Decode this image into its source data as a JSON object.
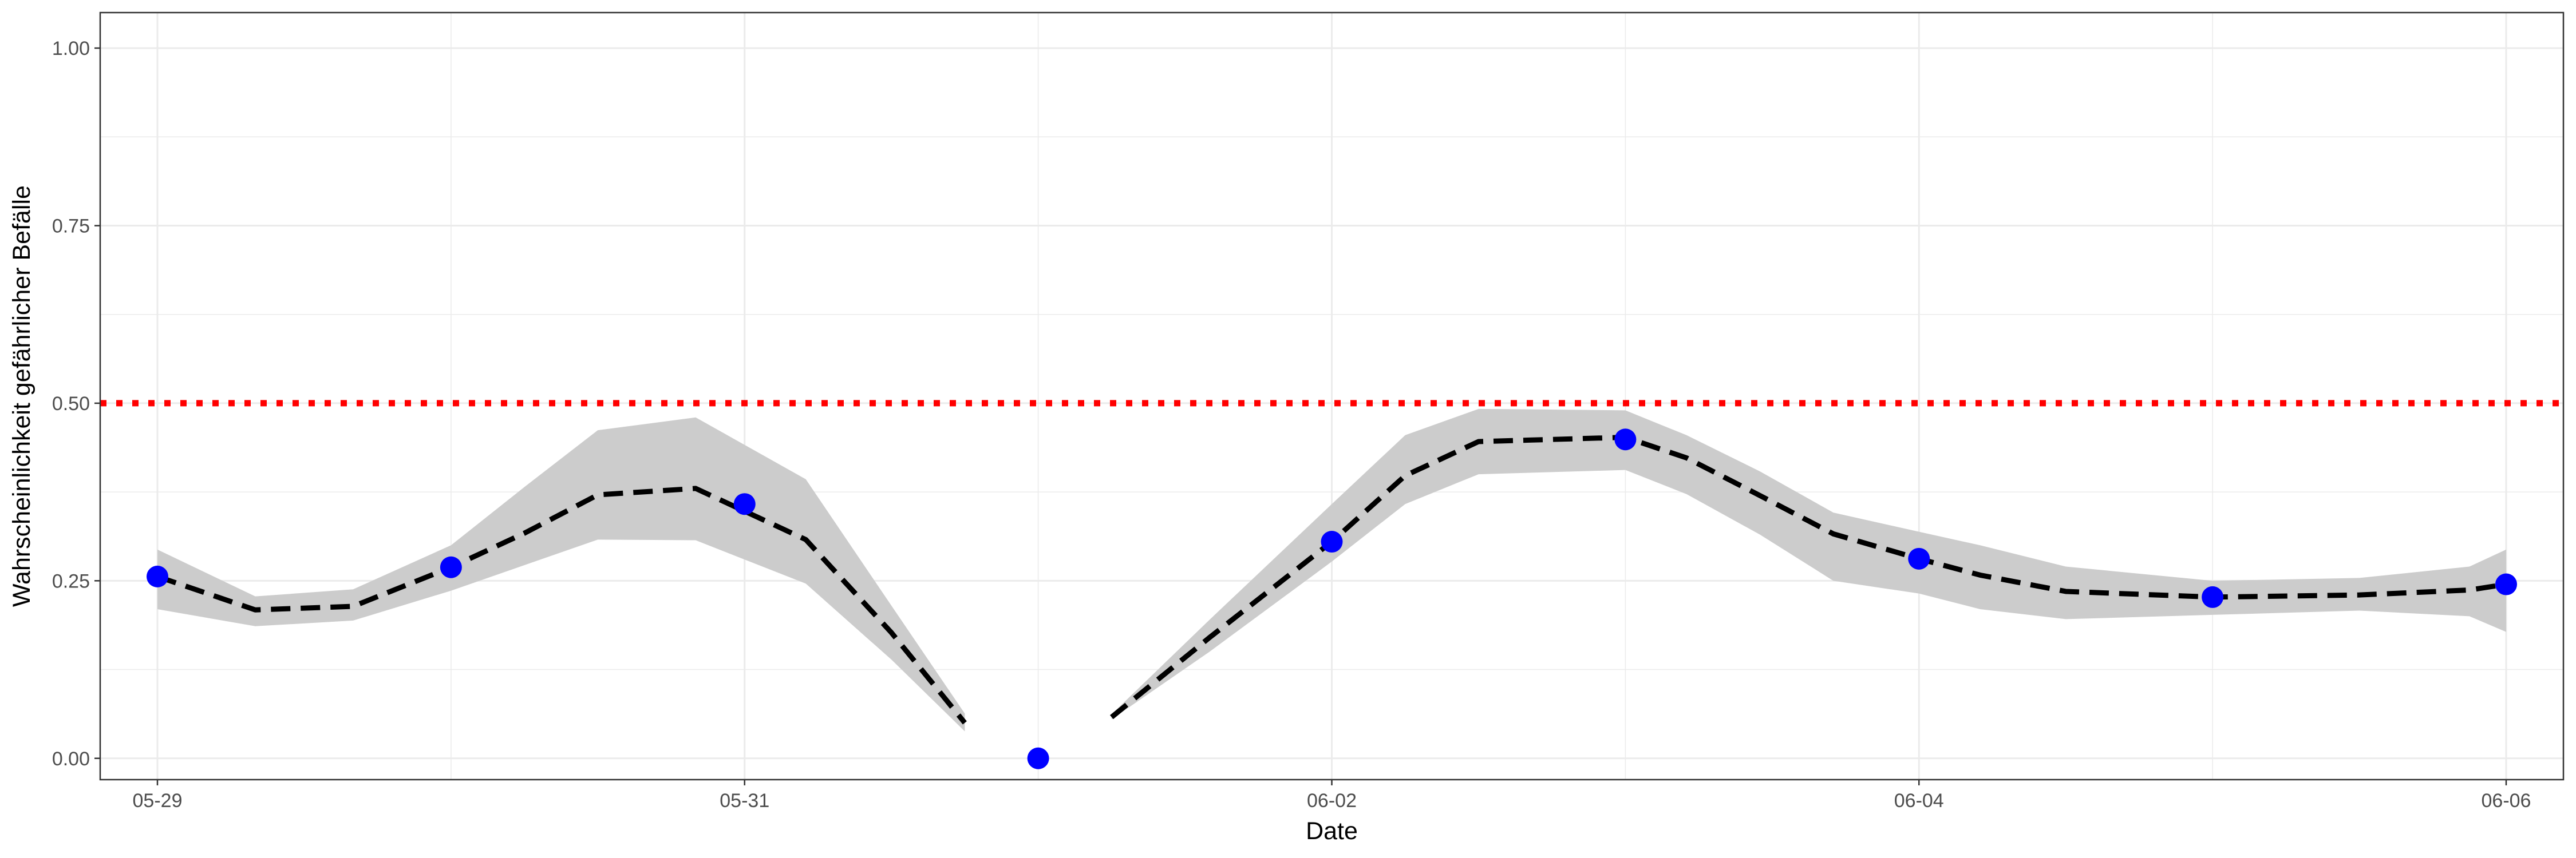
{
  "chart_data": {
    "type": "line",
    "xlabel": "Date",
    "ylabel": "Wahrscheinlichkeit gefährlicher Befälle",
    "x_tick_labels": [
      "05-29",
      "05-31",
      "06-02",
      "06-04",
      "06-06"
    ],
    "x_ticks": [
      "2025-05-29",
      "2025-05-31",
      "2025-06-02",
      "2025-06-04",
      "2025-06-06"
    ],
    "y_tick_labels": [
      "0.00",
      "0.25",
      "0.50",
      "0.75",
      "1.00"
    ],
    "ylim": [
      -0.03,
      1.05
    ],
    "grid": true,
    "threshold": {
      "y": 0.5,
      "color": "#ff0000",
      "style": "dotted"
    },
    "points": {
      "color": "#0000ff",
      "data": [
        {
          "x": "2025-05-29T00:00",
          "y": 0.256
        },
        {
          "x": "2025-05-30T00:00",
          "y": 0.269
        },
        {
          "x": "2025-05-31T00:00",
          "y": 0.358
        },
        {
          "x": "2025-06-01T00:00",
          "y": 0.0
        },
        {
          "x": "2025-06-02T00:00",
          "y": 0.305
        },
        {
          "x": "2025-06-03T00:00",
          "y": 0.449
        },
        {
          "x": "2025-06-04T00:00",
          "y": 0.281
        },
        {
          "x": "2025-06-05T00:00",
          "y": 0.227
        },
        {
          "x": "2025-06-06T00:00",
          "y": 0.245
        }
      ]
    },
    "smooth_segments": [
      [
        {
          "x": "2025-05-29T00:00",
          "y": 0.256,
          "lo": 0.21,
          "hi": 0.294
        },
        {
          "x": "2025-05-29T08:00",
          "y": 0.209,
          "lo": 0.186,
          "hi": 0.228
        },
        {
          "x": "2025-05-29T16:00",
          "y": 0.214,
          "lo": 0.194,
          "hi": 0.238
        },
        {
          "x": "2025-05-30T00:00",
          "y": 0.269,
          "lo": 0.236,
          "hi": 0.3
        },
        {
          "x": "2025-05-30T06:00",
          "y": 0.317,
          "lo": 0.272,
          "hi": 0.382
        },
        {
          "x": "2025-05-30T12:00",
          "y": 0.371,
          "lo": 0.308,
          "hi": 0.462
        },
        {
          "x": "2025-05-30T20:00",
          "y": 0.38,
          "lo": 0.307,
          "hi": 0.48
        },
        {
          "x": "2025-05-31T05:00",
          "y": 0.308,
          "lo": 0.246,
          "hi": 0.393
        },
        {
          "x": "2025-05-31T12:00",
          "y": 0.177,
          "lo": 0.139,
          "hi": 0.215
        },
        {
          "x": "2025-05-31T18:00",
          "y": 0.05,
          "lo": 0.038,
          "hi": 0.063
        }
      ],
      [
        {
          "x": "2025-06-01T06:00",
          "y": 0.058,
          "lo": 0.055,
          "hi": 0.062
        },
        {
          "x": "2025-06-01T14:00",
          "y": 0.17,
          "lo": 0.15,
          "hi": 0.195
        },
        {
          "x": "2025-06-02T00:00",
          "y": 0.305,
          "lo": 0.277,
          "hi": 0.358
        },
        {
          "x": "2025-06-02T06:00",
          "y": 0.398,
          "lo": 0.358,
          "hi": 0.455
        },
        {
          "x": "2025-06-02T12:00",
          "y": 0.446,
          "lo": 0.4,
          "hi": 0.492
        },
        {
          "x": "2025-06-03T00:00",
          "y": 0.452,
          "lo": 0.406,
          "hi": 0.49
        },
        {
          "x": "2025-06-03T05:00",
          "y": 0.423,
          "lo": 0.372,
          "hi": 0.455
        },
        {
          "x": "2025-06-03T11:00",
          "y": 0.37,
          "lo": 0.315,
          "hi": 0.404
        },
        {
          "x": "2025-06-03T17:00",
          "y": 0.316,
          "lo": 0.25,
          "hi": 0.346
        },
        {
          "x": "2025-06-04T00:00",
          "y": 0.281,
          "lo": 0.232,
          "hi": 0.319
        },
        {
          "x": "2025-06-04T05:00",
          "y": 0.258,
          "lo": 0.21,
          "hi": 0.3
        },
        {
          "x": "2025-06-04T12:00",
          "y": 0.235,
          "lo": 0.196,
          "hi": 0.27
        },
        {
          "x": "2025-06-05T00:00",
          "y": 0.227,
          "lo": 0.202,
          "hi": 0.25
        },
        {
          "x": "2025-06-05T12:00",
          "y": 0.23,
          "lo": 0.208,
          "hi": 0.254
        },
        {
          "x": "2025-06-05T21:00",
          "y": 0.237,
          "lo": 0.2,
          "hi": 0.27
        },
        {
          "x": "2025-06-06T00:00",
          "y": 0.245,
          "lo": 0.178,
          "hi": 0.294
        }
      ]
    ],
    "colors": {
      "line": "#000000",
      "ribbon": "#cccccc",
      "grid": "#ebebeb",
      "panel_border": "#333333"
    }
  }
}
